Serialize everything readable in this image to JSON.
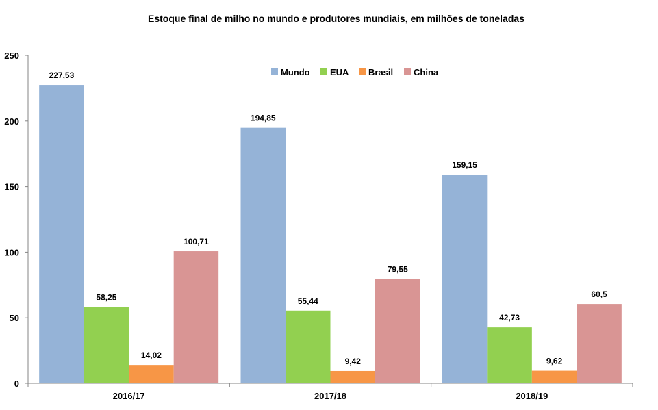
{
  "chart_data": {
    "type": "bar",
    "title": "Estoque final de milho no mundo e produtores mundiais, em milhões de toneladas",
    "xlabel": "",
    "ylabel": "",
    "categories": [
      "2016/17",
      "2017/18",
      "2018/19"
    ],
    "series": [
      {
        "name": "Mundo",
        "color": "#95b3d7",
        "values": [
          227.53,
          194.85,
          159.15
        ],
        "labels": [
          "227,53",
          "194,85",
          "159,15"
        ]
      },
      {
        "name": "EUA",
        "color": "#92d050",
        "values": [
          58.25,
          55.44,
          42.73
        ],
        "labels": [
          "58,25",
          "55,44",
          "42,73"
        ]
      },
      {
        "name": "Brasil",
        "color": "#f79646",
        "values": [
          14.02,
          9.42,
          9.62
        ],
        "labels": [
          "14,02",
          "9,42",
          "9,62"
        ]
      },
      {
        "name": "China",
        "color": "#d99594",
        "values": [
          100.71,
          79.55,
          60.5
        ],
        "labels": [
          "100,71",
          "79,55",
          "60,5"
        ]
      }
    ],
    "ylim": [
      0,
      250
    ],
    "yticks": [
      0,
      50,
      100,
      150,
      200,
      250
    ],
    "grid": false,
    "legend_position": "top-center"
  }
}
